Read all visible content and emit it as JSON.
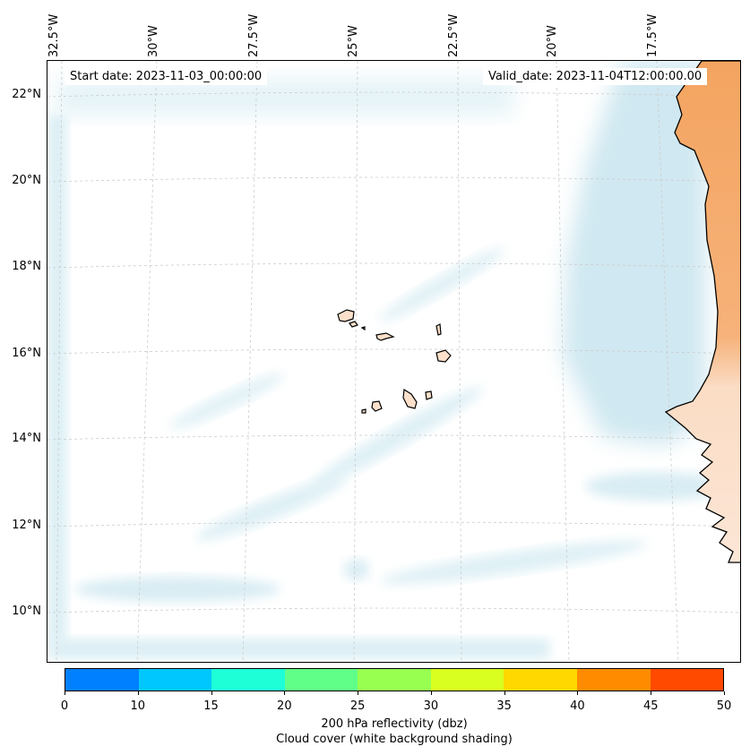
{
  "map": {
    "start_date": "Start date: 2023-11-03_00:00:00",
    "valid_date": "Valid_date: 2023-11-04T12:00:00.00",
    "lon_labels": [
      "32.5°W",
      "30°W",
      "27.5°W",
      "25°W",
      "22.5°W",
      "20°W",
      "17.5°W"
    ],
    "lat_labels": [
      "22°N",
      "20°N",
      "18°N",
      "16°N",
      "14°N",
      "12°N",
      "10°N"
    ],
    "features": {
      "coastline": "African west coast (Senegal / Mauritania)",
      "islands": "Cape Verde islands"
    },
    "colors": {
      "land": "#f4a460",
      "cloud": "#a9d6e5",
      "coast": "#000000",
      "grid": "#cccccc"
    }
  },
  "colorbar": {
    "ticks": [
      "0",
      "10",
      "15",
      "20",
      "25",
      "30",
      "35",
      "40",
      "45",
      "50"
    ],
    "colors": [
      "#0080ff",
      "#00c8ff",
      "#1effd8",
      "#60ff88",
      "#98ff50",
      "#d8ff20",
      "#ffd800",
      "#ff8c00",
      "#ff4a00"
    ],
    "label": "200 hPa reflectivity (dbz)",
    "sublabel": "Cloud cover (white background shading)"
  }
}
